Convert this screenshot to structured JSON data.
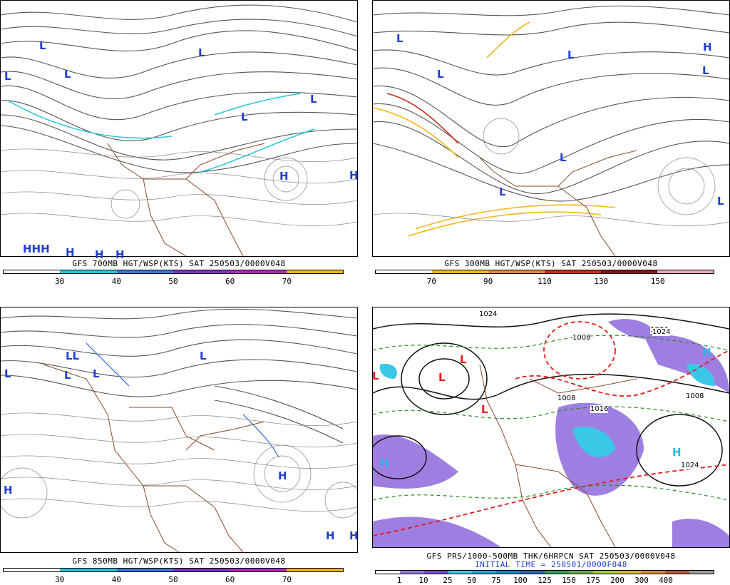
{
  "panels": [
    {
      "id": "p700",
      "title": "GFS 700MB HGT/WSP(KTS) SAT 250503/0000V048",
      "subtitle": "",
      "colorbar": [
        "#ffffff",
        "#22c8d8",
        "#3a78d8",
        "#7a32c8",
        "#b028b8",
        "#f0b818"
      ],
      "ticks": [
        "30",
        "40",
        "50",
        "60",
        "70"
      ],
      "centers": [
        {
          "label": "L",
          "color": "#1f3fd0"
        },
        {
          "label": "L",
          "color": "#1f3fd0"
        },
        {
          "label": "L",
          "color": "#1f3fd0"
        },
        {
          "label": "L",
          "color": "#1f3fd0"
        },
        {
          "label": "L",
          "color": "#1f3fd0"
        },
        {
          "label": "L",
          "color": "#1f3fd0"
        },
        {
          "label": "H",
          "color": "#1f3fd0"
        },
        {
          "label": "H",
          "color": "#1f3fd0"
        },
        {
          "label": "HHH",
          "color": "#1f3fd0"
        },
        {
          "label": "H",
          "color": "#1f3fd0"
        },
        {
          "label": "H",
          "color": "#1f3fd0"
        },
        {
          "label": "H",
          "color": "#1f3fd0"
        }
      ]
    },
    {
      "id": "p300",
      "title": "GFS 300MB HGT/WSP(KTS) SAT 250503/0000V048",
      "subtitle": "",
      "colorbar": [
        "#ffffff",
        "#f0b818",
        "#e08a38",
        "#c03018",
        "#8a1010",
        "#f0a8b8"
      ],
      "ticks": [
        "70",
        "90",
        "110",
        "130",
        "150"
      ],
      "centers": [
        {
          "label": "L",
          "color": "#1f3fd0"
        },
        {
          "label": "L",
          "color": "#1f3fd0"
        },
        {
          "label": "L",
          "color": "#1f3fd0"
        },
        {
          "label": "L",
          "color": "#1f3fd0"
        },
        {
          "label": "L",
          "color": "#1f3fd0"
        },
        {
          "label": "L",
          "color": "#1f3fd0"
        },
        {
          "label": "H",
          "color": "#1f3fd0"
        },
        {
          "label": "L",
          "color": "#1f3fd0"
        }
      ]
    },
    {
      "id": "p850",
      "title": "GFS 850MB HGT/WSP(KTS) SAT 250503/0000V048",
      "subtitle": "",
      "colorbar": [
        "#ffffff",
        "#22c8d8",
        "#3a78d8",
        "#7a32c8",
        "#b028b8",
        "#f0b818"
      ],
      "ticks": [
        "30",
        "40",
        "50",
        "60",
        "70"
      ],
      "centers": [
        {
          "label": "L",
          "color": "#1f3fd0"
        },
        {
          "label": "LL",
          "color": "#1f3fd0"
        },
        {
          "label": "L",
          "color": "#1f3fd0"
        },
        {
          "label": "L",
          "color": "#1f3fd0"
        },
        {
          "label": "L",
          "color": "#1f3fd0"
        },
        {
          "label": "H",
          "color": "#1f3fd0"
        },
        {
          "label": "H",
          "color": "#1f3fd0"
        },
        {
          "label": "H",
          "color": "#1f3fd0"
        },
        {
          "label": "H",
          "color": "#1f3fd0"
        }
      ]
    },
    {
      "id": "pthk",
      "title": "GFS PRS/1000-500MB THK/6HRPCN SAT 250503/0000V048",
      "subtitle": "INITIAL TIME = 250501/0000F048",
      "colorbar": [
        "#ffffff",
        "#9a78e0",
        "#7a4ad0",
        "#3ac8e8",
        "#2aa8d8",
        "#1a88c0",
        "#2a68b0",
        "#3a9a58",
        "#6ab048",
        "#a8c848",
        "#d8b838",
        "#d88838",
        "#b85a38",
        "#a0a0a0"
      ],
      "ticks": [
        "1",
        "10",
        "25",
        "50",
        "75",
        "100",
        "125",
        "150",
        "175",
        "200",
        "300",
        "400"
      ],
      "centers": [
        {
          "label": "L",
          "color": "#e81818"
        },
        {
          "label": "L",
          "color": "#e81818"
        },
        {
          "label": "L",
          "color": "#e81818"
        },
        {
          "label": "L",
          "color": "#e81818"
        },
        {
          "label": "H",
          "color": "#2ab8e8"
        },
        {
          "label": "H",
          "color": "#2ab8e8"
        },
        {
          "label": "H",
          "color": "#2ab8e8"
        }
      ],
      "isobar_labels": [
        "1024",
        "1024",
        "1024",
        "1008",
        "1016",
        "1008",
        "1024",
        "1008"
      ]
    }
  ]
}
